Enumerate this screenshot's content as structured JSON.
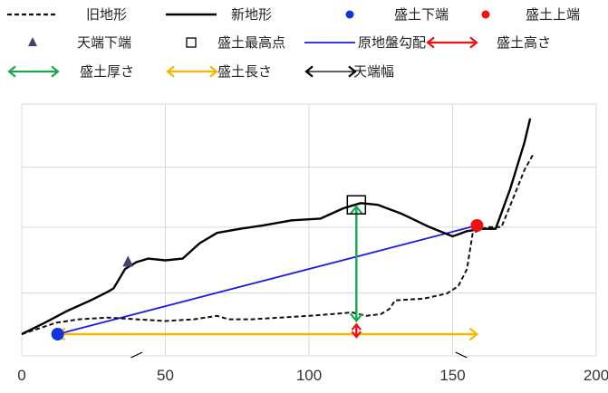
{
  "chart_data": {
    "type": "line",
    "xlim": [
      0,
      200
    ],
    "x_ticks": [
      "0",
      "50",
      "100",
      "150",
      "200"
    ],
    "grid": true,
    "legend_position": "top",
    "legend": [
      {
        "key": "old_terrain",
        "label": "旧地形",
        "symbol": "dashed-line",
        "color": "#111111"
      },
      {
        "key": "new_terrain",
        "label": "新地形",
        "symbol": "solid-line",
        "color": "#000000"
      },
      {
        "key": "fill_bottom_end",
        "label": "盛土下端",
        "symbol": "circle",
        "color": "#1133dd"
      },
      {
        "key": "fill_top_end",
        "label": "盛土上端",
        "symbol": "circle",
        "color": "#ee1111"
      },
      {
        "key": "crest_bottom_end",
        "label": "天端下端",
        "symbol": "triangle",
        "color": "#4a3f6b"
      },
      {
        "key": "fill_highest_point",
        "label": "盛土最高点",
        "symbol": "square",
        "color": "#000000"
      },
      {
        "key": "original_ground_slope",
        "label": "原地盤勾配",
        "symbol": "solid-line",
        "color": "#1c1ce0"
      },
      {
        "key": "fill_height",
        "label": "盛土高さ",
        "symbol": "double-arrow",
        "color": "#ee1111"
      },
      {
        "key": "fill_thickness",
        "label": "盛土厚さ",
        "symbol": "double-arrow",
        "color": "#18a850"
      },
      {
        "key": "fill_length",
        "label": "盛土長さ",
        "symbol": "double-arrow",
        "color": "#f5b800"
      },
      {
        "key": "crest_width",
        "label": "天端幅",
        "symbol": "double-arrow",
        "color": "#000000"
      }
    ],
    "series": [
      {
        "name": "旧地形",
        "style": "dashed",
        "color": "#111111",
        "points": [
          [
            0,
            -13.2
          ],
          [
            6,
            -12.2
          ],
          [
            12,
            -11.2
          ],
          [
            20,
            -10.6
          ],
          [
            30,
            -10.3
          ],
          [
            40,
            -10.6
          ],
          [
            50,
            -10.9
          ],
          [
            60,
            -10.6
          ],
          [
            68,
            -10.0
          ],
          [
            72,
            -10.6
          ],
          [
            80,
            -10.6
          ],
          [
            90,
            -10.3
          ],
          [
            100,
            -10.0
          ],
          [
            108,
            -9.7
          ],
          [
            115,
            -9.4
          ],
          [
            120,
            -10.0
          ],
          [
            125,
            -9.7
          ],
          [
            128,
            -8.8
          ],
          [
            130,
            -7.3
          ],
          [
            140,
            -7.0
          ],
          [
            148,
            -6.1
          ],
          [
            152,
            -4.8
          ],
          [
            155,
            -1.8
          ],
          [
            157,
            4.5
          ],
          [
            162,
            5.5
          ],
          [
            167,
            5.5
          ],
          [
            170,
            9.2
          ],
          [
            175,
            15.5
          ],
          [
            178,
            18.2
          ]
        ]
      },
      {
        "name": "新地形",
        "style": "solid",
        "color": "#000000",
        "points": [
          [
            0,
            -13.2
          ],
          [
            8,
            -11.2
          ],
          [
            16,
            -9.1
          ],
          [
            24,
            -7.3
          ],
          [
            30,
            -5.8
          ],
          [
            32,
            -5.2
          ],
          [
            36,
            -1.8
          ],
          [
            40,
            -0.6
          ],
          [
            44,
            -0.0
          ],
          [
            50,
            -0.3
          ],
          [
            56,
            -0.0
          ],
          [
            62,
            2.7
          ],
          [
            68,
            4.5
          ],
          [
            76,
            5.2
          ],
          [
            84,
            5.8
          ],
          [
            94,
            6.7
          ],
          [
            104,
            7.0
          ],
          [
            112,
            8.8
          ],
          [
            118,
            9.7
          ],
          [
            124,
            9.4
          ],
          [
            132,
            7.9
          ],
          [
            142,
            5.5
          ],
          [
            150,
            3.9
          ],
          [
            155,
            4.8
          ],
          [
            160,
            5.2
          ],
          [
            165,
            5.2
          ],
          [
            170,
            12.1
          ],
          [
            175,
            20.3
          ],
          [
            177,
            24.5
          ]
        ]
      }
    ],
    "points": {
      "fill_bottom_end": [
        12.5,
        -13.2
      ],
      "fill_top_end": [
        158.5,
        5.8
      ],
      "crest_bottom_end": [
        37,
        -0.6
      ],
      "fill_highest_point": [
        116.5,
        9.4
      ]
    },
    "lines": {
      "original_ground_slope": [
        [
          12.5,
          -13.2
        ],
        [
          158.5,
          5.8
        ]
      ]
    },
    "arrows": {
      "fill_height": [
        [
          116.5,
          -11.5
        ],
        [
          116.5,
          -13.7
        ]
      ],
      "fill_thickness": [
        [
          116.5,
          9.1
        ],
        [
          116.5,
          -10.9
        ]
      ],
      "fill_length": [
        [
          12.5,
          -13.2
        ],
        [
          158.5,
          -13.2
        ]
      ]
    }
  }
}
